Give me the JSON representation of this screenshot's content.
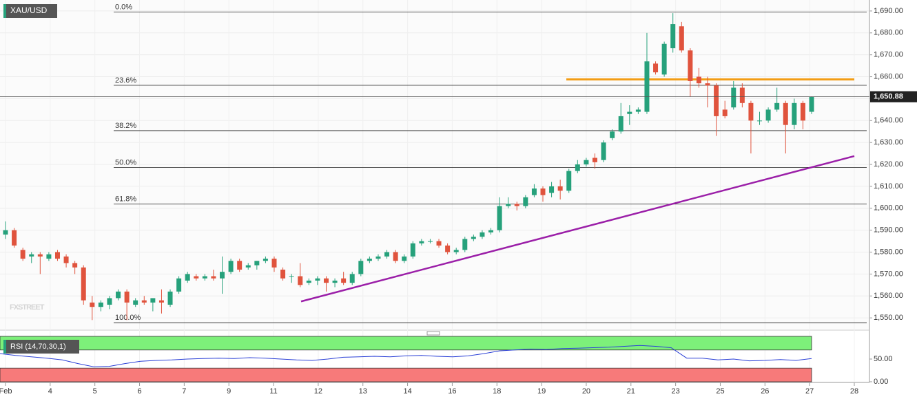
{
  "chart_data": [
    {
      "type": "candlestick",
      "title": "XAU/USD",
      "watermark": "FXSTREET",
      "ylim": [
        1544.4,
        1695.0
      ],
      "yticks": [
        {
          "value": 1550,
          "label": "1,550.00"
        },
        {
          "value": 1560,
          "label": "1,560.00"
        },
        {
          "value": 1570,
          "label": "1,570.00"
        },
        {
          "value": 1580,
          "label": "1,580.00"
        },
        {
          "value": 1590,
          "label": "1,590.00"
        },
        {
          "value": 1600,
          "label": "1,600.00"
        },
        {
          "value": 1610,
          "label": "1,610.00"
        },
        {
          "value": 1620,
          "label": "1,620.00"
        },
        {
          "value": 1630,
          "label": "1,630.00"
        },
        {
          "value": 1640,
          "label": "1,640.00"
        },
        {
          "value": 1650,
          "label": "1,650.00"
        },
        {
          "value": 1660,
          "label": "1,660.00"
        },
        {
          "value": 1670,
          "label": "1,670.00"
        },
        {
          "value": 1680,
          "label": "1,680.00"
        },
        {
          "value": 1690,
          "label": "1,690.00"
        }
      ],
      "x_axis_labels": [
        "Feb",
        "4",
        "5",
        "6",
        "7",
        "9",
        "11",
        "12",
        "13",
        "14",
        "16",
        "18",
        "19",
        "20",
        "21",
        "23",
        "25",
        "26",
        "27",
        "28"
      ],
      "up_color": "#26a17b",
      "down_color": "#e0533d",
      "open": [
        1588,
        1590,
        1581,
        1578,
        1579,
        1577,
        1580,
        1578,
        1575,
        1573,
        1557,
        1555,
        1556,
        1559,
        1562,
        1556,
        1558,
        1557,
        1558,
        1556,
        1562,
        1567,
        1569,
        1568,
        1569,
        1568,
        1571,
        1576,
        1573,
        1574,
        1576,
        1577,
        1572,
        1569,
        1569,
        1566,
        1567,
        1568,
        1566,
        1568,
        1566,
        1570,
        1576,
        1577,
        1578,
        1580,
        1576,
        1578,
        1584,
        1585,
        1585,
        1583,
        1580,
        1581,
        1586,
        1587,
        1589,
        1590,
        1601,
        1602,
        1601,
        1606,
        1609,
        1607,
        1610,
        1608,
        1617,
        1620,
        1623,
        1622,
        1632,
        1635,
        1643,
        1644,
        1644,
        1666,
        1661,
        1673,
        1683,
        1672,
        1660,
        1657,
        1656,
        1645,
        1646,
        1655,
        1648,
        1640,
        1640,
        1645,
        1648,
        1638,
        1648,
        1644
      ],
      "high": [
        1594,
        1591,
        1582,
        1580,
        1580,
        1580,
        1581,
        1579,
        1576,
        1574,
        1560,
        1558,
        1560,
        1563,
        1563,
        1559,
        1560,
        1559,
        1563,
        1563,
        1569,
        1571,
        1570,
        1570,
        1572,
        1578,
        1577,
        1577,
        1575,
        1576,
        1578,
        1578,
        1573,
        1570,
        1575,
        1568,
        1569,
        1569,
        1568,
        1571,
        1571,
        1577,
        1578,
        1579,
        1581,
        1581,
        1579,
        1585,
        1586,
        1586,
        1586,
        1584,
        1582,
        1587,
        1588,
        1590,
        1591,
        1605,
        1605,
        1603,
        1606,
        1611,
        1610,
        1612,
        1613,
        1618,
        1622,
        1623,
        1625,
        1631,
        1636,
        1648,
        1647,
        1646,
        1680,
        1667,
        1676,
        1689,
        1685,
        1673,
        1664,
        1660,
        1657,
        1649,
        1658,
        1657,
        1649,
        1644,
        1646,
        1655,
        1649,
        1650,
        1649,
        1651
      ],
      "low": [
        1586,
        1582,
        1576,
        1575,
        1570,
        1576,
        1576,
        1573,
        1570,
        1556,
        1549,
        1553,
        1554,
        1558,
        1549,
        1555,
        1556,
        1553,
        1552,
        1555,
        1561,
        1566,
        1567,
        1567,
        1567,
        1561,
        1570,
        1571,
        1572,
        1572,
        1575,
        1571,
        1567,
        1566,
        1564,
        1565,
        1565,
        1562,
        1564,
        1565,
        1565,
        1569,
        1575,
        1576,
        1577,
        1575,
        1575,
        1577,
        1583,
        1584,
        1582,
        1579,
        1579,
        1580,
        1585,
        1586,
        1588,
        1589,
        1600,
        1599,
        1600,
        1605,
        1603,
        1605,
        1604,
        1607,
        1616,
        1619,
        1618,
        1621,
        1631,
        1634,
        1638,
        1643,
        1643,
        1661,
        1660,
        1671,
        1671,
        1651,
        1655,
        1646,
        1633,
        1641,
        1645,
        1646,
        1625,
        1638,
        1639,
        1644,
        1625,
        1636,
        1636,
        1643
      ],
      "close": [
        1590,
        1583,
        1577,
        1579,
        1578,
        1579,
        1577,
        1575,
        1573,
        1558,
        1555,
        1557,
        1559,
        1562,
        1557,
        1558,
        1557,
        1559,
        1557,
        1562,
        1568,
        1570,
        1568,
        1569,
        1568,
        1571,
        1576,
        1572,
        1574,
        1576,
        1577,
        1573,
        1568,
        1569,
        1565,
        1567,
        1568,
        1566,
        1567,
        1566,
        1570,
        1576,
        1577,
        1578,
        1580,
        1576,
        1578,
        1584,
        1585,
        1585,
        1583,
        1580,
        1581,
        1586,
        1587,
        1589,
        1590,
        1601,
        1602,
        1601,
        1605,
        1609,
        1606,
        1610,
        1608,
        1617,
        1620,
        1622,
        1621,
        1630,
        1635,
        1642,
        1644,
        1645,
        1667,
        1662,
        1675,
        1684,
        1672,
        1658,
        1657,
        1656,
        1642,
        1642,
        1655,
        1648,
        1640,
        1640,
        1645,
        1648,
        1638,
        1648,
        1640,
        1650.88
      ],
      "levels": [
        {
          "label": "0.0%",
          "value": 1689.5
        },
        {
          "label": "23.6%",
          "value": 1656.1
        },
        {
          "label": "38.2%",
          "value": 1635.4
        },
        {
          "label": "50.0%",
          "value": 1618.65
        },
        {
          "label": "61.8%",
          "value": 1601.9
        },
        {
          "label": "100.0%",
          "value": 1547.8
        }
      ],
      "last_price": {
        "value": 1650.88,
        "label": "1,650.88"
      },
      "resistance": {
        "value": 1658.8,
        "color": "#f39c12"
      },
      "trendline": {
        "values": [
          1557.5,
          1623.8
        ],
        "color": "#9b1fa8"
      }
    },
    {
      "type": "line",
      "title": "RSI (14,70,30,1)",
      "color": "#2a3fd6",
      "ylim": [
        0,
        100
      ],
      "yticks": [
        {
          "value": 0,
          "label": "0.00"
        },
        {
          "value": 50,
          "label": "50.00"
        }
      ],
      "overbought": 70,
      "oversold": 30,
      "overbought_color": "#7df07a",
      "oversold_color": "#f77a7a",
      "values": [
        62,
        58,
        55,
        52,
        48,
        40,
        33,
        34,
        40,
        45,
        47,
        48,
        50,
        51,
        52,
        51,
        53,
        52,
        50,
        48,
        47,
        50,
        54,
        55,
        56,
        55,
        57,
        58,
        56,
        55,
        57,
        62,
        68,
        70,
        72,
        71,
        73,
        74,
        75,
        76,
        78,
        80,
        78,
        75,
        52,
        52,
        48,
        50,
        46,
        47,
        49,
        47,
        51
      ]
    }
  ]
}
